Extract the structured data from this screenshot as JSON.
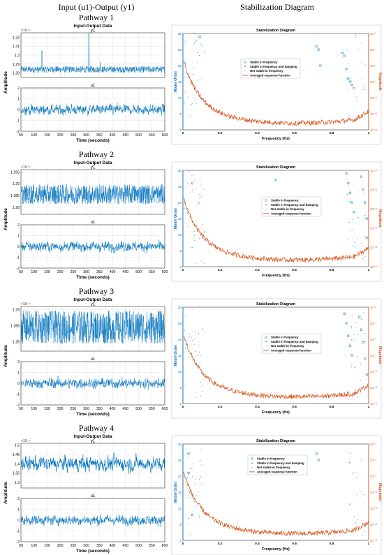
{
  "column_titles": {
    "left": "Input (u1)-Output (y1)",
    "right": "Stabilization Diagram"
  },
  "io_panel_title": "Input-Output Data",
  "io_xlabel": "Time (seconds)",
  "io_ylabel": "Amplitude",
  "stab_title": "Stabilization Diagram",
  "stab_xlabel": "Frequency (Hz)",
  "stab_ylabel_left": "Model Order",
  "stab_ylabel_right": "Magnitude",
  "legend": [
    "Stable in frequency",
    "Stable in frequency and damping",
    "Not stable in frequency",
    "Averaged response function"
  ],
  "colors": {
    "signal": "#0072BD",
    "response": "#D95319",
    "stable": "#4DA3D9",
    "axis_right": "#D95319"
  },
  "chart_data": [
    {
      "pathway": "Pathway 1",
      "type": "line",
      "y1": {
        "title": "y1",
        "exponent": "×10⁻⁴",
        "ylim": [
          1.275,
          1.325
        ],
        "yticks": [
          "1.28",
          "1.29",
          "1.3",
          "1.31",
          "1.32"
        ],
        "yticks_values": [
          1.28,
          1.29,
          1.3,
          1.31,
          1.32
        ],
        "base": 1.284,
        "noise": 0.0035,
        "spikes": [
          [
            130,
            1.305
          ],
          [
            310,
            1.325
          ],
          [
            355,
            1.292
          ]
        ]
      },
      "u1": {
        "title": "u1",
        "ylim": [
          -2,
          2
        ],
        "yticks": [
          "-2",
          "-1",
          "0",
          "1",
          "2"
        ],
        "amp": 0.45
      },
      "xlim": [
        50,
        600
      ],
      "xticks": [
        50,
        100,
        150,
        200,
        250,
        300,
        350,
        400,
        450,
        500,
        550,
        600
      ],
      "stab": {
        "xlim": [
          0,
          1
        ],
        "xticks": [
          "0",
          "0.2",
          "0.4",
          "0.6",
          "0.8",
          "1"
        ],
        "ylim": [
          0,
          30
        ],
        "yticks": [
          "0",
          "5",
          "10",
          "15",
          "20",
          "25",
          "30"
        ],
        "rticks": [
          "10⁻¹⁴",
          "10⁻¹²",
          "10⁻¹⁰",
          "10⁻⁸",
          "10⁻⁶",
          "10⁻⁴",
          "10⁻²"
        ],
        "stable_points": [
          [
            0.09,
            29
          ],
          [
            0.72,
            26
          ],
          [
            0.73,
            25
          ],
          [
            0.74,
            20
          ],
          [
            0.86,
            24
          ],
          [
            0.87,
            23
          ],
          [
            0.88,
            19
          ],
          [
            0.89,
            16
          ],
          [
            0.9,
            15
          ],
          [
            0.91,
            14
          ],
          [
            0.92,
            13
          ]
        ]
      }
    },
    {
      "pathway": "Pathway 2",
      "type": "line",
      "y1": {
        "title": "y1",
        "exponent": "×10⁻⁴",
        "ylim": [
          1.277,
          1.296
        ],
        "yticks": [
          "1.28",
          "1.285",
          "1.29",
          "1.295"
        ],
        "yticks_values": [
          1.28,
          1.285,
          1.29,
          1.295
        ],
        "base": 1.2855,
        "noise": 0.0042,
        "spikes": []
      },
      "u1": {
        "title": "u1",
        "ylim": [
          -2,
          2
        ],
        "yticks": [
          "-2",
          "-1",
          "0",
          "1",
          "2"
        ],
        "amp": 0.45
      },
      "xlim": [
        50,
        600
      ],
      "xticks": [
        50,
        100,
        150,
        200,
        250,
        300,
        350,
        400,
        450,
        500,
        550,
        600
      ],
      "stab": {
        "xlim": [
          0,
          1
        ],
        "xticks": [
          "0",
          "0.2",
          "0.4",
          "0.6",
          "0.8",
          "1"
        ],
        "ylim": [
          0,
          30
        ],
        "yticks": [
          "0",
          "5",
          "10",
          "15",
          "20",
          "25",
          "30"
        ],
        "rticks": [
          "10⁻²⁰",
          "10⁻¹⁸",
          "10⁻¹⁶",
          "10⁻¹⁴",
          "10⁻¹²",
          "10⁻¹⁰"
        ],
        "stable_points": [
          [
            0.05,
            26
          ],
          [
            0.5,
            27
          ],
          [
            0.88,
            29
          ],
          [
            0.89,
            26
          ],
          [
            0.9,
            23
          ],
          [
            0.91,
            20
          ],
          [
            0.92,
            17
          ],
          [
            0.96,
            28
          ],
          [
            0.97,
            24
          ],
          [
            0.98,
            20
          ],
          [
            0.99,
            15
          ],
          [
            0.99,
            9
          ]
        ]
      }
    },
    {
      "pathway": "Pathway 3",
      "type": "line",
      "y1": {
        "title": "y1",
        "exponent": "×10⁻⁴",
        "ylim": [
          1.277,
          1.291
        ],
        "yticks": [
          "1.28",
          "1.285",
          "1.29"
        ],
        "yticks_values": [
          1.28,
          1.285,
          1.29
        ],
        "base": 1.2845,
        "noise": 0.0052,
        "spikes": []
      },
      "u1": {
        "title": "u1",
        "ylim": [
          -2,
          2
        ],
        "yticks": [
          "-2",
          "-1",
          "0",
          "1",
          "2"
        ],
        "amp": 0.45
      },
      "xlim": [
        50,
        600
      ],
      "xticks": [
        50,
        100,
        150,
        200,
        250,
        300,
        350,
        400,
        450,
        500,
        550,
        600
      ],
      "stab": {
        "xlim": [
          0,
          1
        ],
        "xticks": [
          "0",
          "0.2",
          "0.4",
          "0.6",
          "0.8",
          "1"
        ],
        "ylim": [
          0,
          30
        ],
        "yticks": [
          "0",
          "5",
          "10",
          "15",
          "20",
          "25",
          "30"
        ],
        "rticks": [
          "10⁻¹⁴",
          "10⁻¹²",
          "10⁻¹⁰",
          "10⁻⁸",
          "10⁻⁶",
          "10⁻⁴",
          "10⁻²"
        ],
        "stable_points": [
          [
            0.45,
            21
          ],
          [
            0.87,
            28
          ],
          [
            0.88,
            25
          ],
          [
            0.89,
            21
          ],
          [
            0.9,
            18
          ],
          [
            0.91,
            15
          ],
          [
            0.95,
            27
          ],
          [
            0.96,
            23
          ],
          [
            0.97,
            19
          ],
          [
            0.98,
            14
          ],
          [
            0.99,
            9
          ]
        ]
      }
    },
    {
      "pathway": "Pathway 4",
      "type": "line",
      "y1": {
        "title": "y1",
        "exponent": "×10⁻⁴",
        "ylim": [
          1.27,
          1.51
        ],
        "yticks": [
          "1.3",
          "1.35",
          "1.4",
          "1.45",
          "1.5"
        ],
        "yticks_values": [
          1.3,
          1.35,
          1.4,
          1.45,
          1.5
        ],
        "base": 1.4,
        "noise": 0.09,
        "spikes": []
      },
      "u1": {
        "title": "u1",
        "ylim": [
          -2,
          2
        ],
        "yticks": [
          "-2",
          "-1",
          "0",
          "1",
          "2"
        ],
        "amp": 0.45
      },
      "xlim": [
        50,
        600
      ],
      "xticks": [
        50,
        100,
        150,
        200,
        250,
        300,
        350,
        400,
        450,
        500,
        550,
        600
      ],
      "stab": {
        "xlim": [
          0,
          1
        ],
        "xticks": [
          "0",
          "0.2",
          "0.4",
          "0.6",
          "0.8",
          "1"
        ],
        "ylim": [
          0,
          30
        ],
        "yticks": [
          "0",
          "5",
          "10",
          "15",
          "20",
          "25",
          "30"
        ],
        "rticks": [
          "10⁻¹⁶",
          "10⁻¹⁴",
          "10⁻¹²",
          "10⁻¹⁰",
          "10⁻⁸",
          "10⁻⁶",
          "10⁻⁴"
        ],
        "stable_points": [
          [
            0.03,
            27
          ],
          [
            0.03,
            21
          ],
          [
            0.04,
            15
          ],
          [
            0.05,
            8
          ],
          [
            0.36,
            23
          ],
          [
            0.37,
            21
          ],
          [
            0.72,
            27
          ],
          [
            0.73,
            25
          ]
        ]
      }
    }
  ]
}
